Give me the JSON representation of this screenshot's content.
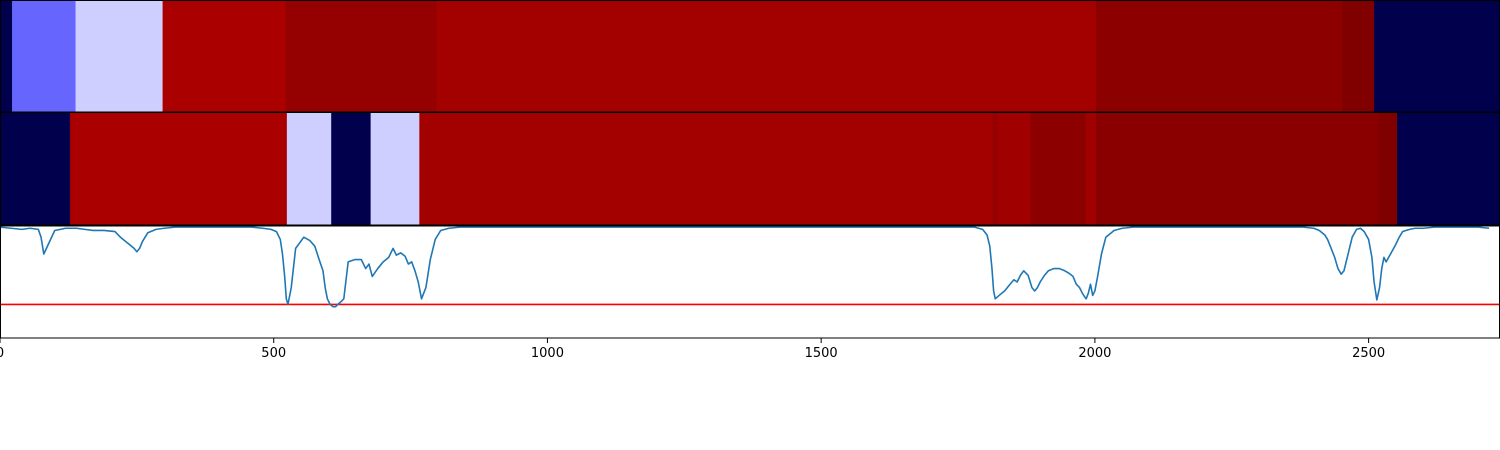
{
  "chart_data": {
    "type": "heatmap",
    "x_range": [
      0,
      2740
    ],
    "x_ticks": [
      0,
      500,
      1000,
      1500,
      2000,
      2500
    ],
    "x_tick_labels": [
      "0",
      "500",
      "1000",
      "1500",
      "2000",
      "2500"
    ],
    "tracks": [
      {
        "name": "",
        "segments": [
          {
            "start": 0,
            "end": 22,
            "color": "#00004c"
          },
          {
            "start": 22,
            "end": 138,
            "color": "#6666ff"
          },
          {
            "start": 138,
            "end": 297,
            "color": "#cfcfff"
          },
          {
            "start": 297,
            "end": 522,
            "color": "#aa0000"
          },
          {
            "start": 522,
            "end": 797,
            "color": "#950000"
          },
          {
            "start": 797,
            "end": 2002,
            "color": "#a30000"
          },
          {
            "start": 2002,
            "end": 2452,
            "color": "#8c0000"
          },
          {
            "start": 2452,
            "end": 2510,
            "color": "#800000"
          },
          {
            "start": 2510,
            "end": 2740,
            "color": "#00004c"
          }
        ]
      },
      {
        "name": "",
        "segments": [
          {
            "start": 0,
            "end": 128,
            "color": "#00004c"
          },
          {
            "start": 128,
            "end": 524,
            "color": "#aa0000"
          },
          {
            "start": 524,
            "end": 605,
            "color": "#cfcfff"
          },
          {
            "start": 605,
            "end": 677,
            "color": "#00004c"
          },
          {
            "start": 677,
            "end": 766,
            "color": "#cfcfff"
          },
          {
            "start": 766,
            "end": 1813,
            "color": "#a30000"
          },
          {
            "start": 1813,
            "end": 1823,
            "color": "#950000"
          },
          {
            "start": 1823,
            "end": 1882,
            "color": "#a00000"
          },
          {
            "start": 1882,
            "end": 1983,
            "color": "#8c0000"
          },
          {
            "start": 1983,
            "end": 2002,
            "color": "#a00000"
          },
          {
            "start": 2002,
            "end": 2518,
            "color": "#8a0000"
          },
          {
            "start": 2518,
            "end": 2552,
            "color": "#800000"
          },
          {
            "start": 2552,
            "end": 2740,
            "color": "#00004c"
          }
        ]
      }
    ],
    "line": {
      "color": "#1f77b4",
      "threshold": 0.3,
      "threshold_color": "#ff0000",
      "y_range": [
        0,
        1
      ],
      "x": [
        0,
        20,
        40,
        55,
        70,
        75,
        80,
        100,
        120,
        140,
        155,
        170,
        190,
        210,
        220,
        235,
        245,
        250,
        255,
        260,
        270,
        285,
        300,
        320,
        340,
        360,
        380,
        400,
        420,
        440,
        460,
        480,
        495,
        505,
        512,
        516,
        520,
        523,
        526,
        532,
        540,
        555,
        566,
        575,
        583,
        590,
        594,
        598,
        603,
        608,
        613,
        617,
        622,
        628,
        636,
        648,
        660,
        668,
        674,
        680,
        690,
        700,
        710,
        718,
        724,
        732,
        740,
        746,
        752,
        758,
        764,
        770,
        778,
        786,
        795,
        805,
        820,
        840,
        870,
        900,
        950,
        1000,
        1100,
        1200,
        1300,
        1400,
        1500,
        1550,
        1600,
        1650,
        1700,
        1750,
        1780,
        1795,
        1803,
        1808,
        1812,
        1815,
        1818,
        1825,
        1835,
        1845,
        1852,
        1858,
        1864,
        1870,
        1878,
        1885,
        1890,
        1895,
        1900,
        1908,
        1915,
        1925,
        1935,
        1945,
        1952,
        1960,
        1966,
        1972,
        1977,
        1981,
        1984,
        1988,
        1992,
        1996,
        2000,
        2005,
        2012,
        2020,
        2035,
        2050,
        2070,
        2100,
        2150,
        2200,
        2250,
        2300,
        2350,
        2380,
        2400,
        2410,
        2420,
        2425,
        2430,
        2438,
        2444,
        2450,
        2455,
        2460,
        2465,
        2470,
        2478,
        2485,
        2492,
        2500,
        2506,
        2510,
        2515,
        2520,
        2524,
        2528,
        2532,
        2540,
        2548,
        2556,
        2562,
        2568,
        2575,
        2585,
        2600,
        2620,
        2640,
        2660,
        2680,
        2700,
        2720,
        2740
      ],
      "y": [
        0.99,
        0.98,
        0.97,
        0.98,
        0.97,
        0.9,
        0.75,
        0.96,
        0.98,
        0.98,
        0.97,
        0.96,
        0.96,
        0.95,
        0.9,
        0.84,
        0.8,
        0.77,
        0.8,
        0.86,
        0.94,
        0.97,
        0.98,
        0.99,
        0.99,
        0.99,
        0.99,
        0.99,
        0.99,
        0.99,
        0.99,
        0.98,
        0.97,
        0.95,
        0.88,
        0.75,
        0.55,
        0.35,
        0.3,
        0.45,
        0.8,
        0.9,
        0.87,
        0.82,
        0.7,
        0.6,
        0.45,
        0.35,
        0.3,
        0.28,
        0.28,
        0.3,
        0.32,
        0.35,
        0.68,
        0.7,
        0.7,
        0.62,
        0.66,
        0.55,
        0.62,
        0.68,
        0.72,
        0.8,
        0.74,
        0.76,
        0.73,
        0.66,
        0.68,
        0.6,
        0.5,
        0.35,
        0.45,
        0.7,
        0.88,
        0.96,
        0.98,
        0.99,
        0.99,
        0.99,
        0.99,
        0.99,
        0.99,
        0.99,
        0.99,
        0.99,
        0.99,
        0.99,
        0.99,
        0.99,
        0.99,
        0.99,
        0.99,
        0.97,
        0.92,
        0.82,
        0.62,
        0.42,
        0.35,
        0.38,
        0.42,
        0.48,
        0.52,
        0.5,
        0.56,
        0.6,
        0.56,
        0.45,
        0.42,
        0.45,
        0.5,
        0.56,
        0.6,
        0.62,
        0.62,
        0.6,
        0.58,
        0.55,
        0.48,
        0.45,
        0.4,
        0.37,
        0.35,
        0.4,
        0.48,
        0.38,
        0.42,
        0.55,
        0.75,
        0.9,
        0.96,
        0.98,
        0.99,
        0.99,
        0.99,
        0.99,
        0.99,
        0.99,
        0.99,
        0.99,
        0.98,
        0.96,
        0.92,
        0.88,
        0.82,
        0.72,
        0.62,
        0.57,
        0.6,
        0.7,
        0.8,
        0.9,
        0.97,
        0.98,
        0.95,
        0.88,
        0.72,
        0.5,
        0.34,
        0.45,
        0.62,
        0.72,
        0.68,
        0.75,
        0.82,
        0.9,
        0.95,
        0.96,
        0.97,
        0.98,
        0.98,
        0.99,
        0.99,
        0.99,
        0.99,
        0.99,
        0.98
      ]
    },
    "xlabel": "",
    "ylabel": "",
    "title": ""
  }
}
